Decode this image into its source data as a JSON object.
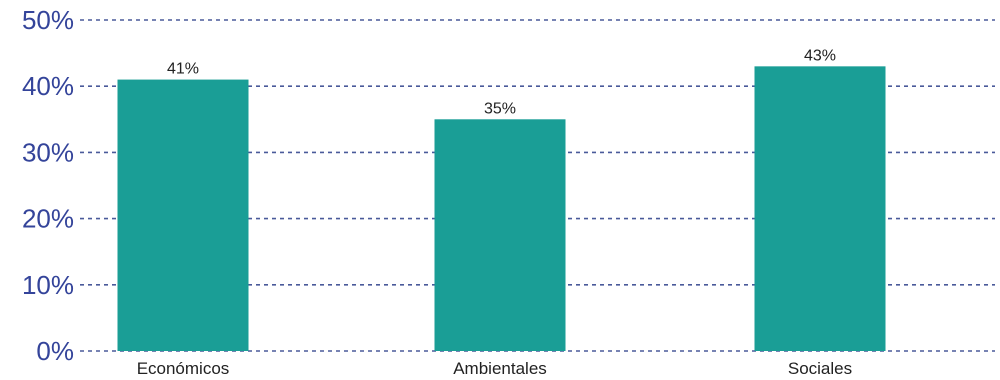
{
  "chart_data": {
    "type": "bar",
    "categories": [
      "Económicos",
      "Ambientales",
      "Sociales"
    ],
    "values": [
      41,
      35,
      43
    ],
    "data_labels": [
      "41%",
      "35%",
      "43%"
    ],
    "y_ticks": [
      0,
      10,
      20,
      30,
      40,
      50
    ],
    "y_tick_labels": [
      "0%",
      "10%",
      "20%",
      "30%",
      "40%",
      "50%"
    ],
    "ylim": [
      0,
      50
    ],
    "title": "",
    "xlabel": "",
    "ylabel": "",
    "grid": true,
    "grid_style": "dashed",
    "legend": "none",
    "colors": {
      "bar": "#1a9e96",
      "grid": "#4a5a9a",
      "y_tick_text": "#34449a",
      "x_tick_text": "#222222",
      "data_label_text": "#222222"
    }
  }
}
